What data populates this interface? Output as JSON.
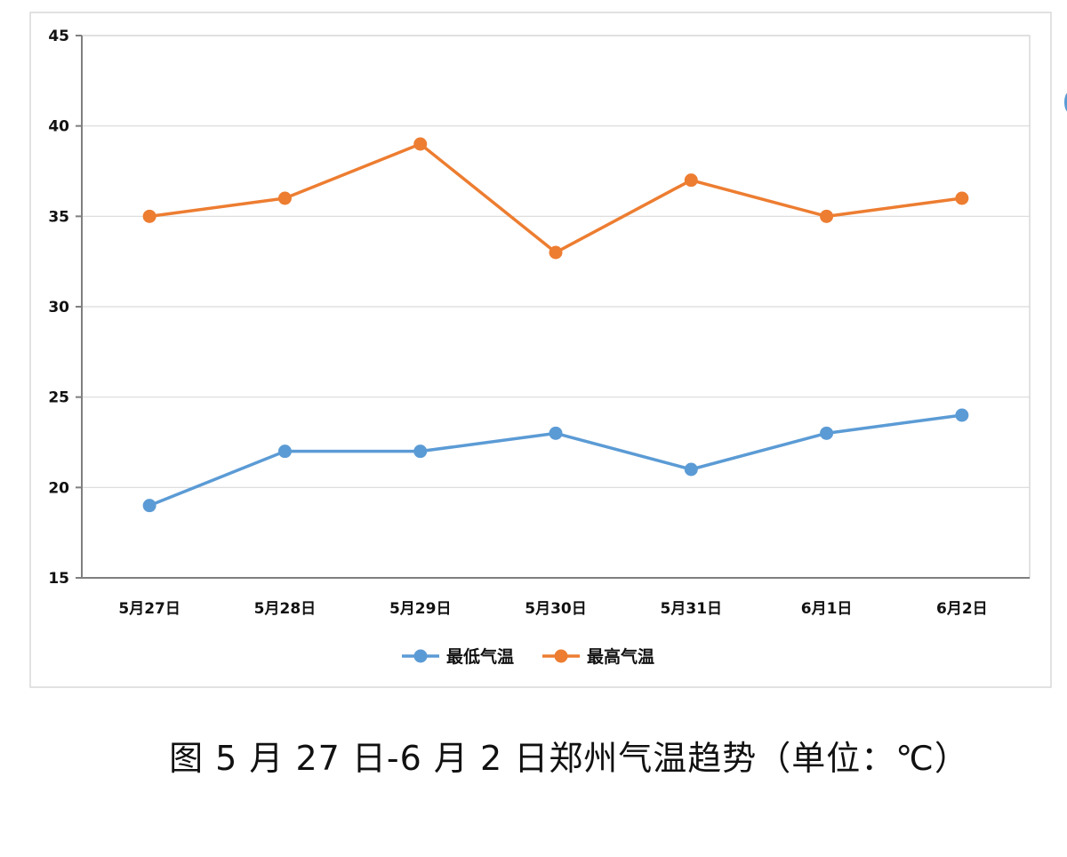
{
  "caption": "图 5 月 27 日-6 月 2 日郑州气温趋势（单位：℃）",
  "chart_data": {
    "type": "line",
    "categories": [
      "5月27日",
      "5月28日",
      "5月29日",
      "5月30日",
      "5月31日",
      "6月1日",
      "6月2日"
    ],
    "series": [
      {
        "name": "最低气温",
        "values": [
          19,
          22,
          22,
          23,
          21,
          23,
          24
        ],
        "color": "#5b9bd5"
      },
      {
        "name": "最高气温",
        "values": [
          35,
          36,
          39,
          33,
          37,
          35,
          36
        ],
        "color": "#ed7d31"
      }
    ],
    "ylim": [
      15,
      45
    ],
    "yticks": [
      "15",
      "20",
      "25",
      "30",
      "35",
      "40",
      "45"
    ],
    "grid": true,
    "legend_position": "bottom",
    "colors": {
      "gridline": "#d9d9d9",
      "axis": "#7f7f7f",
      "frame": "#d9d9d9"
    }
  }
}
